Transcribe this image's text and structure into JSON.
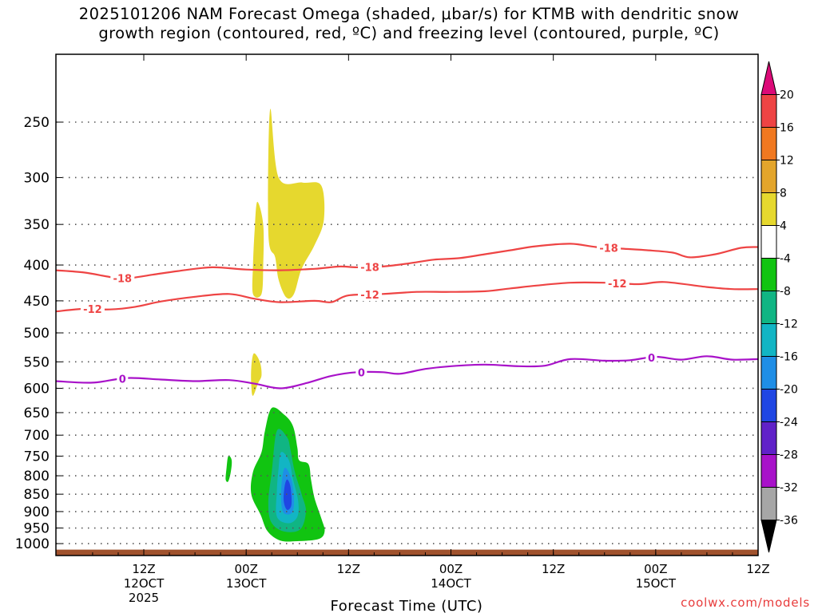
{
  "title": {
    "line1": "2025101206 NAM Forecast Omega (shaded, μbar/s) for KTMB with dendritic snow",
    "line2": "growth region (contoured, red, ºC) and freezing level (contoured, purple, ºC)"
  },
  "credit": "coolwx.com/models",
  "chart_data": {
    "type": "heatmap",
    "xlabel": "Forecast Time (UTC)",
    "ylabel": "",
    "x_unit": "forecast hour",
    "xlim": [
      -4.3,
      78
    ],
    "pressure_scale": "log",
    "ylim": [
      1040,
      200
    ],
    "pressure_ticks": [
      250,
      300,
      350,
      400,
      450,
      500,
      550,
      600,
      650,
      700,
      750,
      800,
      850,
      900,
      950,
      1000
    ],
    "grid": true,
    "x_ticks": [
      {
        "hour": 6,
        "lines": [
          "12Z",
          "12OCT",
          "2025"
        ]
      },
      {
        "hour": 18,
        "lines": [
          "00Z",
          "13OCT"
        ]
      },
      {
        "hour": 30,
        "lines": [
          "12Z"
        ]
      },
      {
        "hour": 42,
        "lines": [
          "00Z",
          "14OCT"
        ]
      },
      {
        "hour": 54,
        "lines": [
          "12Z"
        ]
      },
      {
        "hour": 66,
        "lines": [
          "00Z",
          "15OCT"
        ]
      },
      {
        "hour": 78,
        "lines": [
          "12Z"
        ]
      }
    ],
    "colorbar": {
      "labels": [
        "20",
        "16",
        "12",
        "8",
        "4",
        "-4",
        "-8",
        "-12",
        "-16",
        "-20",
        "-24",
        "-28",
        "-32",
        "-36"
      ],
      "colors": [
        "#dc0a78",
        "#ee4444",
        "#f07820",
        "#e3a52c",
        "#e6d82e",
        "#ffffff",
        "#11c411",
        "#10b583",
        "#12b5c4",
        "#1f8ee6",
        "#1f46e3",
        "#6021c8",
        "#a812c9",
        "#a6a6a6",
        "#000000"
      ]
    },
    "omega_regions": [
      {
        "level": 4,
        "color": "#e6d82e",
        "points": [
          [
            20.8,
            240
          ],
          [
            21.8,
            300
          ],
          [
            24.6,
            305
          ],
          [
            26.8,
            308
          ],
          [
            27.1,
            345
          ],
          [
            26.0,
            375
          ],
          [
            24.5,
            405
          ],
          [
            23.6,
            440
          ],
          [
            22.7,
            445
          ],
          [
            21.8,
            420
          ],
          [
            21.4,
            390
          ],
          [
            20.6,
            360
          ]
        ]
      },
      {
        "level": 4,
        "color": "#e6d82e",
        "points": [
          [
            19.3,
            325
          ],
          [
            20.0,
            350
          ],
          [
            20.0,
            400
          ],
          [
            19.8,
            440
          ],
          [
            18.8,
            440
          ],
          [
            18.8,
            400
          ],
          [
            19.0,
            355
          ]
        ]
      },
      {
        "level": 4,
        "color": "#e6d82e",
        "points": [
          [
            18.9,
            535
          ],
          [
            19.6,
            550
          ],
          [
            19.8,
            575
          ],
          [
            19.4,
            590
          ],
          [
            18.8,
            615
          ],
          [
            18.6,
            595
          ],
          [
            18.6,
            560
          ]
        ]
      },
      {
        "level": -4,
        "color": "#11c411",
        "points": [
          [
            21.0,
            640
          ],
          [
            22.5,
            655
          ],
          [
            23.5,
            680
          ],
          [
            24.0,
            730
          ],
          [
            24.2,
            760
          ],
          [
            25.3,
            770
          ],
          [
            25.6,
            810
          ],
          [
            26.0,
            860
          ],
          [
            26.8,
            920
          ],
          [
            27.2,
            960
          ],
          [
            26.5,
            985
          ],
          [
            24.0,
            992
          ],
          [
            22.0,
            990
          ],
          [
            20.5,
            960
          ],
          [
            19.7,
            910
          ],
          [
            18.6,
            850
          ],
          [
            18.8,
            790
          ],
          [
            19.8,
            740
          ],
          [
            20.2,
            690
          ]
        ]
      },
      {
        "level": -4,
        "color": "#11c411",
        "points": [
          [
            15.9,
            750
          ],
          [
            16.3,
            760
          ],
          [
            16.2,
            790
          ],
          [
            15.9,
            815
          ],
          [
            15.6,
            810
          ],
          [
            15.7,
            780
          ]
        ]
      },
      {
        "level": -8,
        "color": "#10b583",
        "points": [
          [
            21.6,
            690
          ],
          [
            22.8,
            705
          ],
          [
            23.2,
            735
          ],
          [
            23.7,
            790
          ],
          [
            24.5,
            850
          ],
          [
            25.0,
            900
          ],
          [
            24.3,
            955
          ],
          [
            22.3,
            960
          ],
          [
            20.9,
            930
          ],
          [
            20.6,
            870
          ],
          [
            21.0,
            790
          ]
        ]
      },
      {
        "level": -12,
        "color": "#12b5c4",
        "points": [
          [
            22.1,
            740
          ],
          [
            23.0,
            760
          ],
          [
            23.5,
            810
          ],
          [
            24.1,
            870
          ],
          [
            24.0,
            915
          ],
          [
            23.0,
            935
          ],
          [
            21.6,
            915
          ],
          [
            21.6,
            840
          ],
          [
            21.8,
            780
          ]
        ]
      },
      {
        "level": -16,
        "color": "#1f8ee6",
        "points": [
          [
            22.5,
            780
          ],
          [
            23.3,
            810
          ],
          [
            23.6,
            870
          ],
          [
            23.3,
            905
          ],
          [
            22.3,
            900
          ],
          [
            22.1,
            840
          ]
        ]
      },
      {
        "level": -20,
        "color": "#1f46e3",
        "points": [
          [
            22.8,
            810
          ],
          [
            23.2,
            830
          ],
          [
            23.3,
            880
          ],
          [
            22.8,
            895
          ],
          [
            22.4,
            870
          ],
          [
            22.5,
            830
          ]
        ]
      }
    ],
    "contours": [
      {
        "value": -18,
        "label": "-18",
        "color": "#ee4444",
        "label_hours": [
          3.5,
          32.5,
          60.5
        ],
        "points": [
          [
            -4.3,
            407
          ],
          [
            -1,
            410
          ],
          [
            2,
            416
          ],
          [
            4,
            418
          ],
          [
            7,
            413
          ],
          [
            10,
            408
          ],
          [
            14,
            403
          ],
          [
            18,
            406
          ],
          [
            22,
            407
          ],
          [
            26,
            405
          ],
          [
            29,
            402
          ],
          [
            31,
            403
          ],
          [
            34,
            402
          ],
          [
            37,
            398
          ],
          [
            40,
            393
          ],
          [
            43,
            391
          ],
          [
            46,
            386
          ],
          [
            49,
            381
          ],
          [
            52,
            376
          ],
          [
            56,
            373
          ],
          [
            59,
            377
          ],
          [
            62,
            379
          ],
          [
            65,
            381
          ],
          [
            68,
            384
          ],
          [
            70,
            390
          ],
          [
            73,
            386
          ],
          [
            76,
            378
          ],
          [
            78,
            377
          ]
        ]
      },
      {
        "value": -12,
        "label": "-12",
        "color": "#ee4444",
        "label_hours": [
          0,
          32.5,
          61.5
        ],
        "points": [
          [
            -4.3,
            466
          ],
          [
            -1,
            462
          ],
          [
            2,
            463
          ],
          [
            5,
            459
          ],
          [
            8,
            451
          ],
          [
            12,
            444
          ],
          [
            16,
            440
          ],
          [
            19,
            447
          ],
          [
            22,
            452
          ],
          [
            26,
            450
          ],
          [
            28,
            452
          ],
          [
            30,
            442
          ],
          [
            34,
            440
          ],
          [
            38,
            437
          ],
          [
            42,
            437
          ],
          [
            46,
            436
          ],
          [
            49,
            432
          ],
          [
            52,
            428
          ],
          [
            56,
            424
          ],
          [
            60,
            424
          ],
          [
            64,
            426
          ],
          [
            67,
            423
          ],
          [
            72,
            430
          ],
          [
            75,
            433
          ],
          [
            78,
            433
          ]
        ]
      },
      {
        "value": 0,
        "label": "0",
        "color": "#a812c9",
        "label_hours": [
          3.5,
          31.5,
          65.5
        ],
        "points": [
          [
            -4.3,
            586
          ],
          [
            0,
            589
          ],
          [
            4,
            580
          ],
          [
            8,
            583
          ],
          [
            12,
            586
          ],
          [
            16,
            584
          ],
          [
            19,
            591
          ],
          [
            22,
            600
          ],
          [
            25,
            590
          ],
          [
            28,
            576
          ],
          [
            31,
            569
          ],
          [
            34,
            569
          ],
          [
            36,
            572
          ],
          [
            39,
            563
          ],
          [
            42,
            558
          ],
          [
            46,
            555
          ],
          [
            50,
            558
          ],
          [
            53,
            557
          ],
          [
            56,
            545
          ],
          [
            60,
            548
          ],
          [
            63,
            547
          ],
          [
            66,
            541
          ],
          [
            69,
            546
          ],
          [
            72,
            540
          ],
          [
            75,
            546
          ],
          [
            78,
            545
          ]
        ]
      }
    ],
    "terrain": {
      "color": "#a0522d",
      "surface_hpa": 1020
    }
  }
}
